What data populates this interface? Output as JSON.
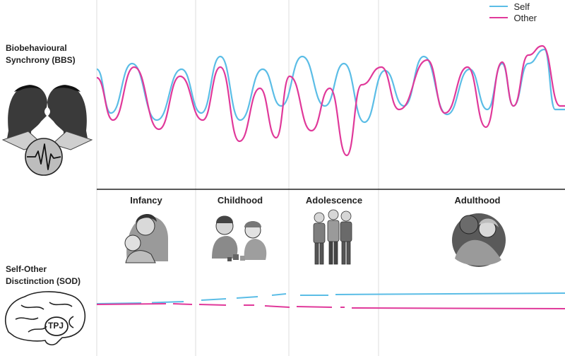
{
  "legend": {
    "self_label": "Self",
    "other_label": "Other"
  },
  "colors": {
    "self": "#5bbde6",
    "other": "#e0399a",
    "divider": "#dddddd",
    "axis": "#222222"
  },
  "labels": {
    "bbs_line1": "Biobehavioural",
    "bbs_line2": "Synchrony (BBS)",
    "sod_line1": "Self-Other",
    "sod_line2": "Disctinction (SOD)",
    "brain_region": "TPJ"
  },
  "stages": [
    {
      "name": "Infancy"
    },
    {
      "name": "Childhood"
    },
    {
      "name": "Adolescence"
    },
    {
      "name": "Adulthood"
    }
  ],
  "illustrations": {
    "bbs_icon": "two-faces-touching-foreheads-with-heartbeat",
    "sod_icon": "brain-outline",
    "infancy_icon": "mother-holding-infant",
    "childhood_icon": "children-playing-with-blocks",
    "adolescence_icon": "group-of-teenagers",
    "adulthood_icon": "adult-couple-embracing"
  }
}
